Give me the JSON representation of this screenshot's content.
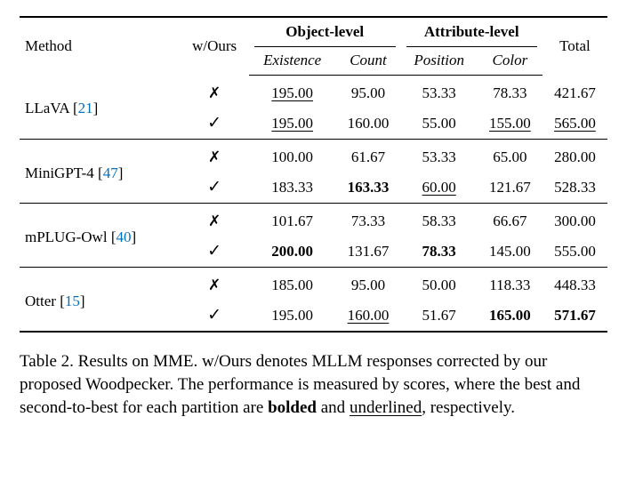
{
  "table": {
    "header": {
      "method": "Method",
      "wours": "w/Ours",
      "object_level": "Object-level",
      "attribute_level": "Attribute-level",
      "total": "Total",
      "sub": {
        "existence": "Existence",
        "count": "Count",
        "position": "Position",
        "color": "Color"
      }
    },
    "marks": {
      "no": "✗",
      "yes": "✓"
    },
    "groups": [
      {
        "method": "LLaVA",
        "ref": "21",
        "rows": [
          {
            "wours": false,
            "existence": {
              "v": "195.00",
              "s": "under"
            },
            "count": {
              "v": "95.00"
            },
            "position": {
              "v": "53.33"
            },
            "color": {
              "v": "78.33"
            },
            "total": {
              "v": "421.67"
            }
          },
          {
            "wours": true,
            "existence": {
              "v": "195.00",
              "s": "under"
            },
            "count": {
              "v": "160.00"
            },
            "position": {
              "v": "55.00"
            },
            "color": {
              "v": "155.00",
              "s": "under"
            },
            "total": {
              "v": "565.00",
              "s": "under"
            }
          }
        ]
      },
      {
        "method": "MiniGPT-4",
        "ref": "47",
        "rows": [
          {
            "wours": false,
            "existence": {
              "v": "100.00"
            },
            "count": {
              "v": "61.67"
            },
            "position": {
              "v": "53.33"
            },
            "color": {
              "v": "65.00"
            },
            "total": {
              "v": "280.00"
            }
          },
          {
            "wours": true,
            "existence": {
              "v": "183.33"
            },
            "count": {
              "v": "163.33",
              "s": "bold"
            },
            "position": {
              "v": "60.00",
              "s": "under"
            },
            "color": {
              "v": "121.67"
            },
            "total": {
              "v": "528.33"
            }
          }
        ]
      },
      {
        "method": "mPLUG-Owl",
        "ref": "40",
        "rows": [
          {
            "wours": false,
            "existence": {
              "v": "101.67"
            },
            "count": {
              "v": "73.33"
            },
            "position": {
              "v": "58.33"
            },
            "color": {
              "v": "66.67"
            },
            "total": {
              "v": "300.00"
            }
          },
          {
            "wours": true,
            "existence": {
              "v": "200.00",
              "s": "bold"
            },
            "count": {
              "v": "131.67"
            },
            "position": {
              "v": "78.33",
              "s": "bold"
            },
            "color": {
              "v": "145.00"
            },
            "total": {
              "v": "555.00"
            }
          }
        ]
      },
      {
        "method": "Otter",
        "ref": "15",
        "rows": [
          {
            "wours": false,
            "existence": {
              "v": "185.00"
            },
            "count": {
              "v": "95.00"
            },
            "position": {
              "v": "50.00"
            },
            "color": {
              "v": "118.33"
            },
            "total": {
              "v": "448.33"
            }
          },
          {
            "wours": true,
            "existence": {
              "v": "195.00"
            },
            "count": {
              "v": "160.00",
              "s": "under"
            },
            "position": {
              "v": "51.67"
            },
            "color": {
              "v": "165.00",
              "s": "bold"
            },
            "total": {
              "v": "571.67",
              "s": "bold"
            }
          }
        ]
      }
    ]
  },
  "caption": {
    "lead": "Table 2. Results on MME. w/Ours denotes MLLM responses corrected by our proposed Woodpecker. The performance is measured by scores, where the best and second-to-best for each partition are ",
    "bolded": "bolded",
    "mid": " and ",
    "underlined": "underlined",
    "tail": ", respectively."
  }
}
